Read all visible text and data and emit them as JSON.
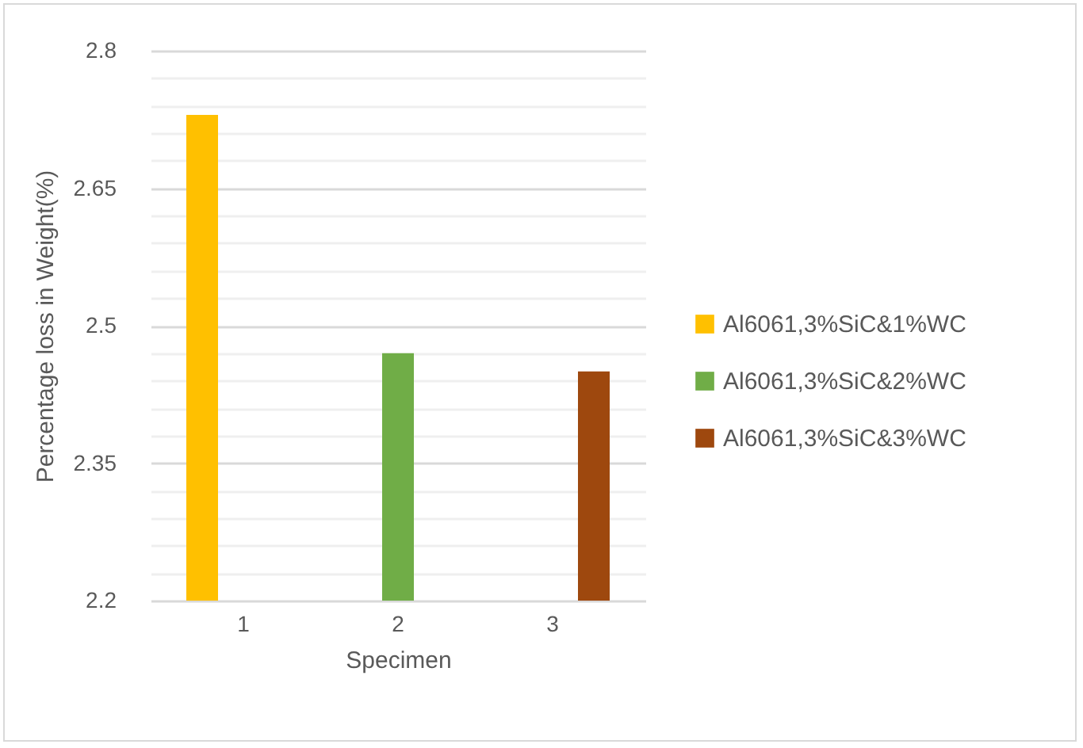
{
  "chart_data": {
    "type": "bar",
    "xlabel": "Specimen",
    "ylabel": "Percentage loss in Weight(%)",
    "categories": [
      "1",
      "2",
      "3"
    ],
    "series": [
      {
        "name": "Al6061,3%SiC&1%WC",
        "color": "#ffc000",
        "values": [
          2.73,
          null,
          null
        ]
      },
      {
        "name": "Al6061,3%SiC&2%WC",
        "color": "#70ad47",
        "values": [
          null,
          2.47,
          null
        ]
      },
      {
        "name": "Al6061,3%SiC&3%WC",
        "color": "#9e480e",
        "values": [
          null,
          null,
          2.45
        ]
      }
    ],
    "ylim": [
      2.2,
      2.8
    ],
    "yticks": [
      2.2,
      {
        "value": 2.23,
        "label": null
      },
      {
        "value": 2.26,
        "label": null
      },
      {
        "value": 2.29,
        "label": null
      },
      {
        "value": 2.32,
        "label": null
      },
      2.35,
      {
        "value": 2.38,
        "label": null
      },
      {
        "value": 2.41,
        "label": null
      },
      {
        "value": 2.44,
        "label": null
      },
      {
        "value": 2.47,
        "label": null
      },
      2.5,
      {
        "value": 2.53,
        "label": null
      },
      {
        "value": 2.56,
        "label": null
      },
      {
        "value": 2.59,
        "label": null
      },
      {
        "value": 2.62,
        "label": null
      },
      2.65,
      {
        "value": 2.68,
        "label": null
      },
      {
        "value": 2.71,
        "label": null
      },
      {
        "value": 2.74,
        "label": null
      },
      {
        "value": 2.77,
        "label": null
      },
      2.8
    ],
    "grid": "y",
    "legend": "right"
  }
}
